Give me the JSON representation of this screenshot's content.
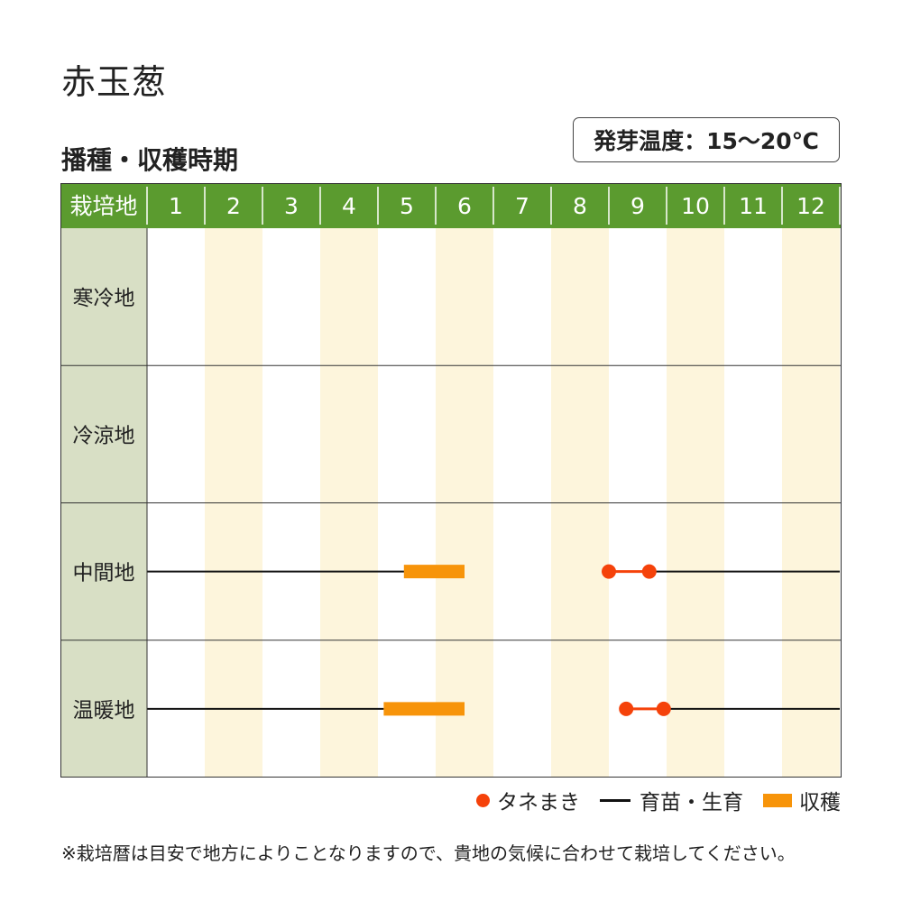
{
  "title": "赤玉葱",
  "subtitle": "播種・収穫時期",
  "temperature_note": "発芽温度：15〜20℃",
  "footnote": "※栽培暦は目安で地方によりことなりますので、貴地の気候に合わせて栽培してください。",
  "colors": {
    "header_green": "#5b9b2f",
    "region_column": "#d8dfc5",
    "alt_month_stripe": "#fdf5dc",
    "sowing": "#f5420a",
    "growing": "#111111",
    "harvest": "#f7940a"
  },
  "legend": {
    "sowing": "タネまき",
    "growing": "育苗・生育",
    "harvest": "収穫"
  },
  "chart_data": {
    "type": "table",
    "header_label": "栽培地",
    "months": [
      "1",
      "2",
      "3",
      "4",
      "5",
      "6",
      "7",
      "8",
      "9",
      "10",
      "11",
      "12"
    ],
    "regions": [
      {
        "name": "寒冷地",
        "sowing": null,
        "growing": [],
        "harvest": null
      },
      {
        "name": "冷涼地",
        "sowing": null,
        "growing": [],
        "harvest": null
      },
      {
        "name": "中間地",
        "sowing": [
          9.0,
          9.7
        ],
        "growing": [
          [
            1.0,
            5.5
          ],
          [
            9.7,
            13.0
          ]
        ],
        "harvest": [
          5.45,
          6.5
        ]
      },
      {
        "name": "温暖地",
        "sowing": [
          9.3,
          9.95
        ],
        "growing": [
          [
            1.0,
            5.1
          ],
          [
            9.95,
            13.0
          ]
        ],
        "harvest": [
          5.1,
          6.5
        ]
      }
    ]
  }
}
